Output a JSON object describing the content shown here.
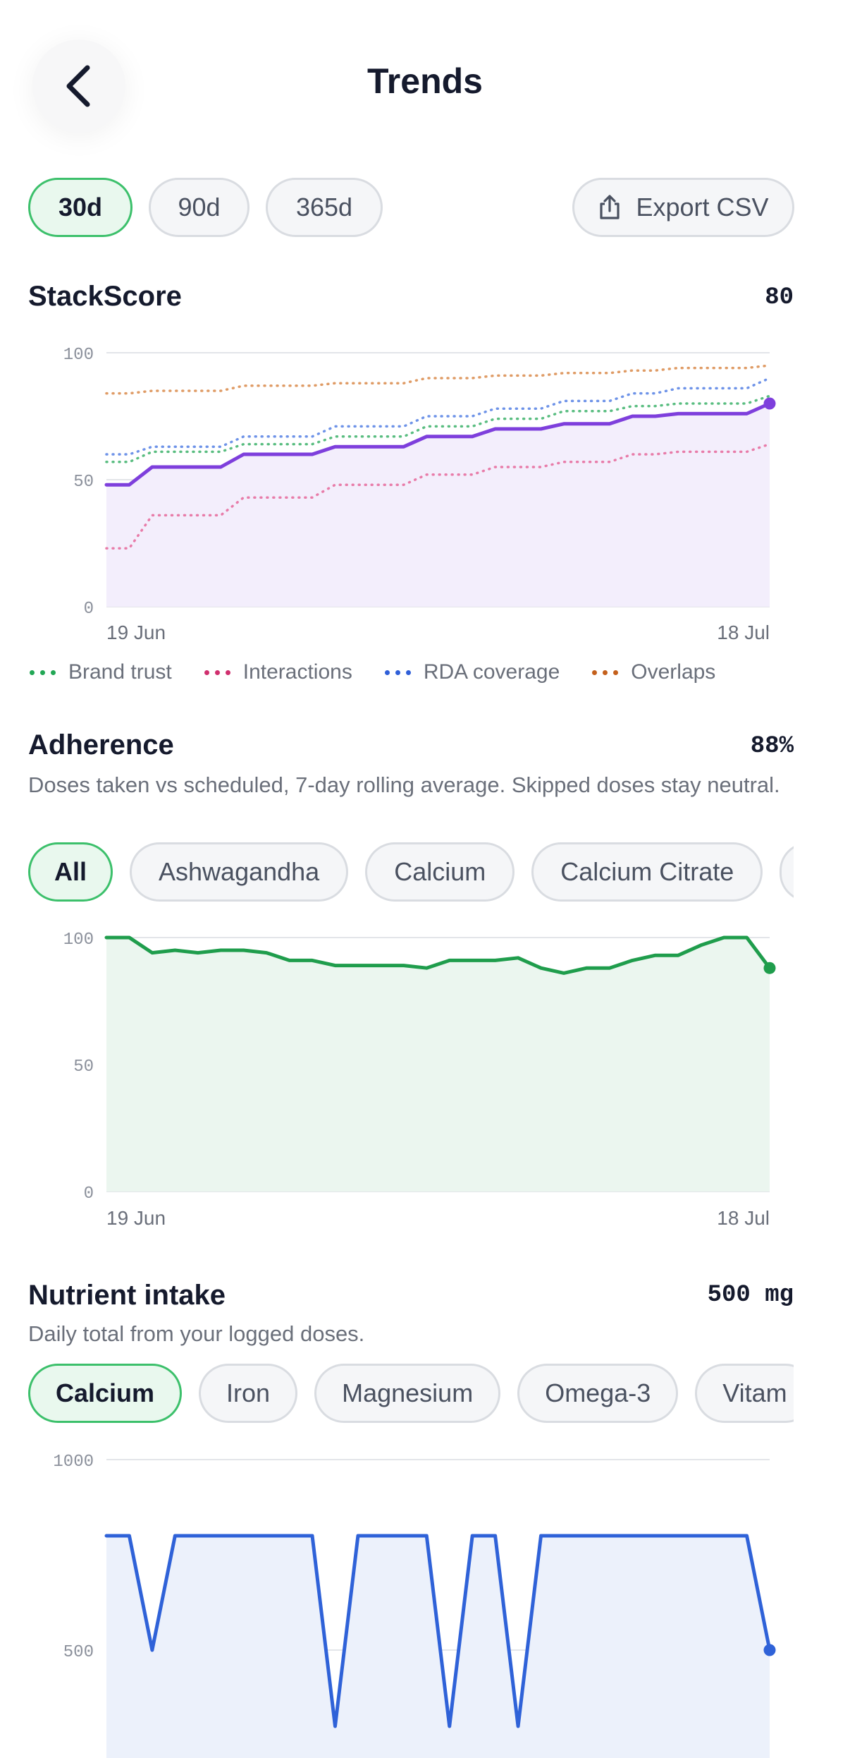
{
  "header": {
    "title": "Trends",
    "back_icon": "chevron-left-icon"
  },
  "ranges": [
    {
      "label": "30d",
      "active": true
    },
    {
      "label": "90d",
      "active": false
    },
    {
      "label": "365d",
      "active": false
    }
  ],
  "export": {
    "label": "Export CSV",
    "icon": "share-icon"
  },
  "stackscore": {
    "title": "StackScore",
    "value": "80",
    "chart_data": {
      "type": "line",
      "x": [
        "19 Jun",
        "20 Jun",
        "21 Jun",
        "22 Jun",
        "23 Jun",
        "24 Jun",
        "25 Jun",
        "26 Jun",
        "27 Jun",
        "28 Jun",
        "29 Jun",
        "30 Jun",
        "1 Jul",
        "2 Jul",
        "3 Jul",
        "4 Jul",
        "5 Jul",
        "6 Jul",
        "7 Jul",
        "8 Jul",
        "9 Jul",
        "10 Jul",
        "11 Jul",
        "12 Jul",
        "13 Jul",
        "14 Jul",
        "15 Jul",
        "16 Jul",
        "17 Jul",
        "18 Jul"
      ],
      "xticks": [
        "19 Jun",
        "18 Jul"
      ],
      "ylim": [
        0,
        100
      ],
      "yticks": [
        0,
        50,
        100
      ],
      "grid": true,
      "legend_position": "bottom",
      "series": [
        {
          "name": "StackScore",
          "color": "#7e3fdc",
          "style": "solid",
          "fill": true,
          "values": [
            48,
            48,
            55,
            55,
            55,
            55,
            60,
            60,
            60,
            60,
            63,
            63,
            63,
            63,
            67,
            67,
            67,
            70,
            70,
            70,
            72,
            72,
            72,
            75,
            75,
            76,
            76,
            76,
            76,
            80
          ]
        },
        {
          "name": "Brand trust",
          "color": "#22a755",
          "style": "dotted",
          "values": [
            57,
            57,
            61,
            61,
            61,
            61,
            64,
            64,
            64,
            64,
            67,
            67,
            67,
            67,
            71,
            71,
            71,
            74,
            74,
            74,
            77,
            77,
            77,
            79,
            79,
            80,
            80,
            80,
            80,
            83
          ]
        },
        {
          "name": "Interactions",
          "color": "#e0508c",
          "style": "dotted",
          "values": [
            23,
            23,
            36,
            36,
            36,
            36,
            43,
            43,
            43,
            43,
            48,
            48,
            48,
            48,
            52,
            52,
            52,
            55,
            55,
            55,
            57,
            57,
            57,
            60,
            60,
            61,
            61,
            61,
            61,
            64
          ]
        },
        {
          "name": "RDA coverage",
          "color": "#3d6fe0",
          "style": "dotted",
          "values": [
            60,
            60,
            63,
            63,
            63,
            63,
            67,
            67,
            67,
            67,
            71,
            71,
            71,
            71,
            75,
            75,
            75,
            78,
            78,
            78,
            81,
            81,
            81,
            84,
            84,
            86,
            86,
            86,
            86,
            90
          ]
        },
        {
          "name": "Overlaps",
          "color": "#d47a32",
          "style": "dotted",
          "values": [
            84,
            84,
            85,
            85,
            85,
            85,
            87,
            87,
            87,
            87,
            88,
            88,
            88,
            88,
            90,
            90,
            90,
            91,
            91,
            91,
            92,
            92,
            92,
            93,
            93,
            94,
            94,
            94,
            94,
            95
          ]
        }
      ]
    }
  },
  "adherence": {
    "title": "Adherence",
    "value": "88%",
    "description": "Doses taken vs scheduled, 7-day rolling average. Skipped doses stay neutral.",
    "filters": [
      {
        "label": "All",
        "active": true
      },
      {
        "label": "Ashwagandha",
        "active": false
      },
      {
        "label": "Calcium",
        "active": false
      },
      {
        "label": "Calcium Citrate",
        "active": false
      },
      {
        "label": "",
        "active": false
      }
    ],
    "chart_data": {
      "type": "area",
      "x": [
        "19 Jun",
        "20 Jun",
        "21 Jun",
        "22 Jun",
        "23 Jun",
        "24 Jun",
        "25 Jun",
        "26 Jun",
        "27 Jun",
        "28 Jun",
        "29 Jun",
        "30 Jun",
        "1 Jul",
        "2 Jul",
        "3 Jul",
        "4 Jul",
        "5 Jul",
        "6 Jul",
        "7 Jul",
        "8 Jul",
        "9 Jul",
        "10 Jul",
        "11 Jul",
        "12 Jul",
        "13 Jul",
        "14 Jul",
        "15 Jul",
        "16 Jul",
        "17 Jul",
        "18 Jul"
      ],
      "xticks": [
        "19 Jun",
        "18 Jul"
      ],
      "ylim": [
        0,
        100
      ],
      "yticks": [
        0,
        50,
        100
      ],
      "grid": true,
      "series": [
        {
          "name": "Adherence",
          "color": "#1f9d4c",
          "fill": true,
          "values": [
            100,
            100,
            94,
            95,
            94,
            95,
            95,
            94,
            91,
            91,
            89,
            89,
            89,
            89,
            88,
            91,
            91,
            91,
            92,
            88,
            86,
            88,
            88,
            91,
            93,
            93,
            97,
            100,
            100,
            88
          ]
        }
      ]
    }
  },
  "nutrient": {
    "title": "Nutrient intake",
    "value": "500 mg",
    "description": "Daily total from your logged doses.",
    "filters": [
      {
        "label": "Calcium",
        "active": true
      },
      {
        "label": "Iron",
        "active": false
      },
      {
        "label": "Magnesium",
        "active": false
      },
      {
        "label": "Omega-3",
        "active": false
      },
      {
        "label": "Vitam",
        "active": false
      }
    ],
    "chart_data": {
      "type": "area",
      "x": [
        "19 Jun",
        "20 Jun",
        "21 Jun",
        "22 Jun",
        "23 Jun",
        "24 Jun",
        "25 Jun",
        "26 Jun",
        "27 Jun",
        "28 Jun",
        "29 Jun",
        "30 Jun",
        "1 Jul",
        "2 Jul",
        "3 Jul",
        "4 Jul",
        "5 Jul",
        "6 Jul",
        "7 Jul",
        "8 Jul",
        "9 Jul",
        "10 Jul",
        "11 Jul",
        "12 Jul",
        "13 Jul",
        "14 Jul",
        "15 Jul",
        "16 Jul",
        "17 Jul",
        "18 Jul"
      ],
      "ylim": [
        0,
        1000
      ],
      "yticks": [
        500,
        1000
      ],
      "grid": true,
      "series": [
        {
          "name": "Calcium",
          "color": "#2f62d8",
          "fill": true,
          "values": [
            800,
            800,
            500,
            800,
            800,
            800,
            800,
            800,
            800,
            800,
            300,
            800,
            800,
            800,
            800,
            300,
            800,
            800,
            300,
            800,
            800,
            800,
            800,
            800,
            800,
            800,
            800,
            800,
            800,
            500
          ]
        }
      ]
    }
  }
}
